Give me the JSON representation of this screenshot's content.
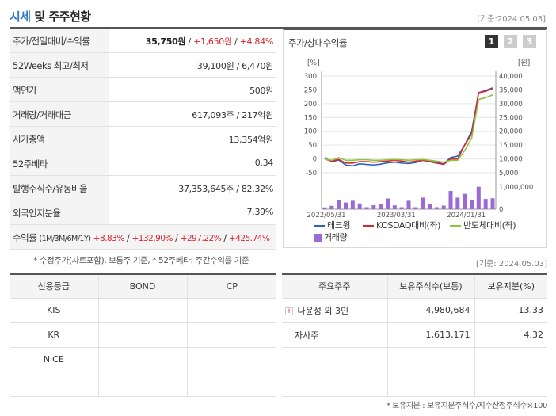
{
  "header": {
    "title_part1": "시세",
    "title_part2": "및 주주현황",
    "base_date": "[기준:2024.05.03]"
  },
  "market": {
    "rows": [
      {
        "label": "주가/전일대비/수익률",
        "value": "35,750원",
        "change": "+1,650원",
        "pct": "+4.84%"
      },
      {
        "label": "52Weeks 최고/최저",
        "value": "39,100원 / 6,470원"
      },
      {
        "label": "액면가",
        "value": "500원"
      },
      {
        "label": "거래량/거래대금",
        "value": "617,093주 / 217억원"
      },
      {
        "label": "시가총액",
        "value": "13,354억원"
      },
      {
        "label": "52주베타",
        "value": "0.34"
      },
      {
        "label": "발행주식수/유동비율",
        "value": "37,353,645주 / 82.32%"
      },
      {
        "label": "외국인지분율",
        "value": "7.39%"
      }
    ],
    "returns": {
      "label": "수익률",
      "sub": "(1M/3M/6M/1Y)",
      "values": [
        "+8.83%",
        "+132.90%",
        "+297.22%",
        "+425.74%"
      ]
    },
    "footnote": "* 수정주가(차트포함), 보통주 기준, * 52주베타: 주간수익률 기준"
  },
  "chart": {
    "title": "주가/상대수익률",
    "pages": [
      "1",
      "2",
      "3"
    ],
    "left_unit": "[%]",
    "right_unit": "[원]",
    "legend": [
      "테크윙",
      "KOSDAQ대비(좌)",
      "반도체대비(좌)",
      "거래량"
    ]
  },
  "chart_data": {
    "type": "line",
    "x": [
      "2022-05",
      "2022-06",
      "2022-07",
      "2022-08",
      "2022-09",
      "2022-10",
      "2022-11",
      "2022-12",
      "2023-01",
      "2023-02",
      "2023-03",
      "2023-04",
      "2023-05",
      "2023-06",
      "2023-07",
      "2023-08",
      "2023-09",
      "2023-10",
      "2023-11",
      "2023-12",
      "2024-01",
      "2024-02",
      "2024-03",
      "2024-04",
      "2024-05"
    ],
    "x_ticks": [
      "2022/05/31",
      "2023/03/31",
      "2024/01/31"
    ],
    "left_axis": {
      "ticks": [
        "300",
        "250",
        "200",
        "150",
        "100",
        "50",
        "0",
        "-50"
      ],
      "range": [
        -50,
        300
      ]
    },
    "right_axis": {
      "ticks": [
        "40,000",
        "35,000",
        "30,000",
        "25,000",
        "20,000",
        "15,000",
        "10,000",
        "5,000"
      ],
      "range": [
        5000,
        40000
      ]
    },
    "volume_axis": {
      "ticks": [
        "1,000,000",
        "0"
      ],
      "range": [
        0,
        1000000
      ]
    },
    "series": [
      {
        "name": "테크윙",
        "axis": "right",
        "color": "#2f5fbf",
        "values": [
          10500,
          9000,
          9600,
          7800,
          7500,
          8200,
          8000,
          7800,
          8100,
          8600,
          8800,
          8500,
          8300,
          8700,
          9500,
          9400,
          8800,
          8200,
          10500,
          11000,
          15000,
          20000,
          34000,
          34800,
          35750
        ]
      },
      {
        "name": "KOSDAQ대비(좌)",
        "axis": "left",
        "color": "#d8262f",
        "values": [
          0,
          -8,
          -2,
          -15,
          -15,
          -10,
          -10,
          -12,
          -10,
          -8,
          -5,
          -8,
          -12,
          -8,
          -5,
          -10,
          -15,
          -20,
          0,
          0,
          50,
          90,
          240,
          245,
          255
        ]
      },
      {
        "name": "반도체대비(좌)",
        "axis": "left",
        "color": "#8cc63f",
        "values": [
          0,
          -5,
          5,
          -5,
          -5,
          -3,
          -3,
          -5,
          -5,
          -3,
          -2,
          -3,
          -5,
          -3,
          -2,
          -5,
          -8,
          -12,
          -5,
          -5,
          30,
          75,
          215,
          222,
          232
        ]
      }
    ],
    "volume": [
      80000,
      150000,
      420000,
      300000,
      380000,
      260000,
      90000,
      180000,
      240000,
      480000,
      170000,
      90000,
      380000,
      90000,
      520000,
      240000,
      90000,
      160000,
      820000,
      520000,
      690000,
      430000,
      1010000,
      460000,
      490000
    ]
  },
  "credit": {
    "headers": [
      "신용등급",
      "BOND",
      "CP"
    ],
    "rows": [
      [
        "KIS",
        "",
        ""
      ],
      [
        "KR",
        "",
        ""
      ],
      [
        "NICE",
        "",
        ""
      ],
      [
        "",
        "",
        ""
      ]
    ]
  },
  "holders": {
    "base_date": "[기준: 2024.05.03]",
    "headers": [
      "주요주주",
      "보유주식수(보통)",
      "보유지분(%)"
    ],
    "rows": [
      {
        "name": "나윤성 외 3인",
        "shares": "4,980,684",
        "pct": "13.33",
        "expand": "+"
      },
      {
        "name": "자사주",
        "shares": "1,613,171",
        "pct": "4.32"
      }
    ],
    "footnote": "* 보유지분 : 보유지분주식수/지수산정주식수×100"
  }
}
